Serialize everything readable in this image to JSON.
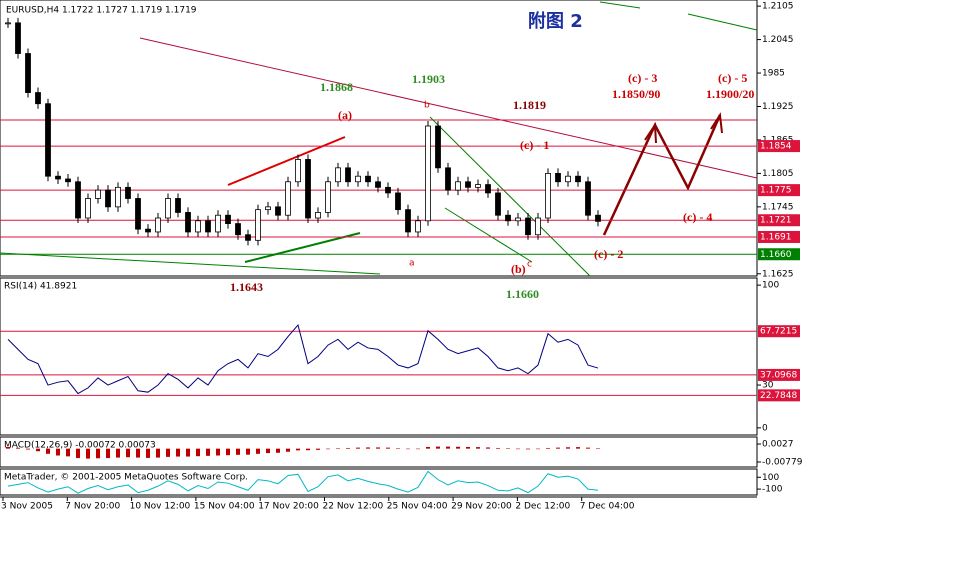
{
  "header": {
    "symbol_info": "EURUSD,H4  1.1722 1.1727 1.1719 1.1719",
    "title": "附图 2"
  },
  "chart_data": [
    {
      "type": "candlestick",
      "ylim": [
        1.1621,
        1.2116
      ],
      "yticks": [
        1.2105,
        1.2045,
        {
          "value": 1.1985,
          "label": "1985"
        },
        1.1925,
        1.1865,
        1.1805,
        1.1745,
        1.1625
      ],
      "closes": [
        1.2075,
        1.202,
        1.195,
        1.193,
        1.18,
        1.1795,
        1.179,
        1.1725,
        1.176,
        1.1775,
        1.1745,
        1.178,
        1.176,
        1.1705,
        1.17,
        1.1725,
        1.176,
        1.1735,
        1.17,
        1.172,
        1.17,
        1.173,
        1.1715,
        1.1695,
        1.1685,
        1.174,
        1.1745,
        1.173,
        1.179,
        1.183,
        1.1725,
        1.1735,
        1.179,
        1.1815,
        1.179,
        1.18,
        1.179,
        1.178,
        1.177,
        1.174,
        1.17,
        1.172,
        1.189,
        1.1815,
        1.1775,
        1.179,
        1.178,
        1.1785,
        1.177,
        1.173,
        1.172,
        1.1725,
        1.1695,
        1.1725,
        1.1805,
        1.179,
        1.18,
        1.179,
        1.173,
        1.1719
      ],
      "levels": [
        1.1854,
        1.1775,
        1.1721,
        1.1691,
        {
          "value": 1.166,
          "label": "1.1660"
        }
      ],
      "level_colors": [
        "#dc143c",
        "#dc143c",
        "#dc143c",
        "#dc143c",
        "#008000"
      ],
      "annotations": [
        {
          "text": "1.1868",
          "color": "#2e8b22"
        },
        {
          "text": "1.1903",
          "color": "#2e8b22"
        },
        {
          "text": "1.1819",
          "color": "#8b0000"
        },
        {
          "text": "(a)",
          "color": "#cc0000"
        },
        {
          "text": "b",
          "color": "#cc0000"
        },
        {
          "text": "(c) - 1",
          "color": "#cc0000"
        },
        {
          "text": "(c) - 3",
          "color": "#cc0000"
        },
        {
          "text": "1.1850/90",
          "color": "#cc0000"
        },
        {
          "text": "(c) - 5",
          "color": "#cc0000"
        },
        {
          "text": "1.1900/20",
          "color": "#cc0000"
        },
        {
          "text": "(c) - 4",
          "color": "#cc0000"
        },
        {
          "text": "(c) - 2",
          "color": "#cc0000"
        },
        {
          "text": "a",
          "color": "#cc0000"
        },
        {
          "text": "(b)",
          "color": "#cc0000"
        },
        {
          "text": "c",
          "color": "#cc0000"
        },
        {
          "text": "1.1660",
          "color": "#2e8b22"
        },
        {
          "text": "1.1643",
          "color": "#8b0000"
        }
      ]
    },
    {
      "type": "line",
      "title": "RSI(14) 41.8921",
      "ylim": [
        -5,
        105
      ],
      "yticks": [
        100,
        30,
        0
      ],
      "levels": [
        67.7215,
        37.0968,
        22.7848
      ],
      "level_colors": [
        "#dc143c",
        "#dc143c",
        "#dc143c"
      ],
      "color": "#000080",
      "values": [
        62,
        55,
        48,
        45,
        30,
        32,
        33,
        24,
        28,
        35,
        30,
        33,
        36,
        26,
        25,
        30,
        38,
        34,
        28,
        35,
        30,
        40,
        45,
        48,
        42,
        52,
        50,
        55,
        64,
        72,
        45,
        50,
        58,
        62,
        55,
        60,
        56,
        55,
        50,
        44,
        42,
        45,
        68,
        62,
        55,
        52,
        54,
        56,
        50,
        42,
        40,
        42,
        38,
        44,
        66,
        60,
        62,
        58,
        44,
        41.8921
      ]
    },
    {
      "type": "histogram",
      "title": "MACD(12,26,9) -0.00072 0.00073",
      "ylim": [
        -0.0107,
        0.0068
      ],
      "yticks": [
        0.0027,
        -0.00779
      ],
      "color": "#c00000",
      "values": [
        0.001,
        0.0005,
        -0.0005,
        -0.0015,
        -0.003,
        -0.004,
        -0.0045,
        -0.0055,
        -0.0058,
        -0.0056,
        -0.0055,
        -0.0052,
        -0.005,
        -0.0052,
        -0.0054,
        -0.0052,
        -0.0048,
        -0.0046,
        -0.0046,
        -0.0044,
        -0.0042,
        -0.004,
        -0.0038,
        -0.0036,
        -0.0035,
        -0.003,
        -0.0026,
        -0.0024,
        -0.0018,
        -0.001,
        -0.0009,
        -0.0007,
        -0.0003,
        0.0002,
        0.0004,
        0.0006,
        0.0007,
        0.0007,
        0.0006,
        0.0003,
        0.0,
        -0.0001,
        0.001,
        0.0012,
        0.0012,
        0.0011,
        0.001,
        0.0009,
        0.0007,
        0.0004,
        0.0001,
        -0.0001,
        -0.0004,
        -0.0003,
        0.0004,
        0.0006,
        0.0008,
        0.0009,
        0.0006,
        0.0003
      ]
    },
    {
      "type": "line",
      "title": "MetaTrader, © 2001-2005 MetaQuotes Software Corp.",
      "ylim": [
        -200,
        240
      ],
      "yticks": [
        100,
        -100
      ],
      "color": "#00b8c8",
      "values": [
        -50,
        -20,
        10,
        -80,
        -150,
        -100,
        -60,
        -170,
        -90,
        -40,
        -110,
        -60,
        -30,
        -160,
        -120,
        -50,
        40,
        -20,
        -130,
        -40,
        -90,
        20,
        0,
        -60,
        -120,
        60,
        40,
        -10,
        130,
        150,
        -140,
        -60,
        110,
        140,
        40,
        80,
        30,
        -10,
        -40,
        -100,
        -150,
        -70,
        200,
        60,
        -30,
        40,
        10,
        20,
        -40,
        -120,
        -130,
        -80,
        -160,
        -50,
        160,
        100,
        120,
        70,
        -100,
        -120
      ]
    }
  ],
  "x_labels": [
    "3 Nov 2005",
    "7 Nov 20:00",
    "10 Nov 12:00",
    "15 Nov 04:00",
    "17 Nov 20:00",
    "22 Nov 12:00",
    "25 Nov 04:00",
    "29 Nov 20:00",
    "2 Dec 12:00",
    "7 Dec 04:00"
  ]
}
